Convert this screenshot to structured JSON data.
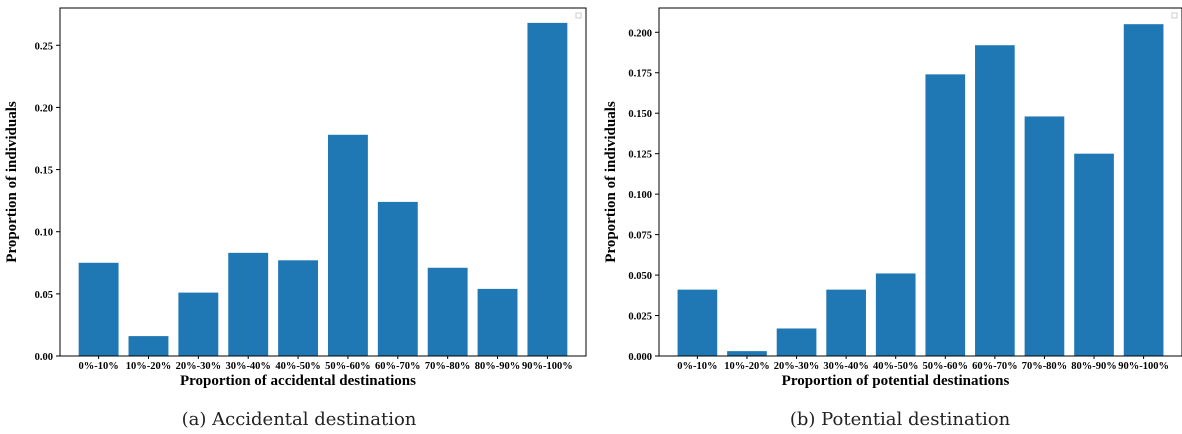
{
  "chart_data": [
    {
      "type": "bar",
      "caption": "(a)  Accidental destination",
      "xlabel": "Proportion of accidental destinations",
      "ylabel": "Proportion of individuals",
      "categories": [
        "0%-10%",
        "10%-20%",
        "20%-30%",
        "30%-40%",
        "40%-50%",
        "50%-60%",
        "60%-70%",
        "70%-80%",
        "80%-90%",
        "90%-100%"
      ],
      "values": [
        0.075,
        0.016,
        0.051,
        0.083,
        0.077,
        0.178,
        0.124,
        0.071,
        0.054,
        0.268
      ],
      "yticks": [
        "0.00",
        "0.05",
        "0.10",
        "0.15",
        "0.20",
        "0.25"
      ],
      "ylim": [
        0,
        0.28
      ],
      "bar_color": "#1f77b4"
    },
    {
      "type": "bar",
      "caption": "(b)  Potential destination",
      "xlabel": "Proportion of potential destinations",
      "ylabel": "Proportion of individuals",
      "categories": [
        "0%-10%",
        "10%-20%",
        "20%-30%",
        "30%-40%",
        "40%-50%",
        "50%-60%",
        "60%-70%",
        "70%-80%",
        "80%-90%",
        "90%-100%"
      ],
      "values": [
        0.041,
        0.003,
        0.017,
        0.041,
        0.051,
        0.174,
        0.192,
        0.148,
        0.125,
        0.205
      ],
      "yticks": [
        "0.000",
        "0.025",
        "0.050",
        "0.075",
        "0.100",
        "0.125",
        "0.150",
        "0.175",
        "0.200"
      ],
      "ylim": [
        0,
        0.215
      ],
      "bar_color": "#1f77b4"
    }
  ]
}
